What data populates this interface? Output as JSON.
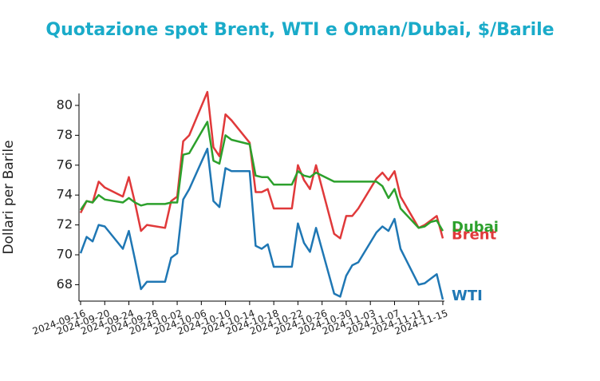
{
  "chart_data": {
    "type": "line",
    "title": "Quotazione spot Brent, WTI e Oman/Dubai, $/Barile",
    "ylabel": "Dollari per Barile",
    "x": [
      "2024-09-16",
      "2024-09-17",
      "2024-09-18",
      "2024-09-19",
      "2024-09-20",
      "2024-09-23",
      "2024-09-24",
      "2024-09-25",
      "2024-09-26",
      "2024-09-27",
      "2024-09-30",
      "2024-10-01",
      "2024-10-02",
      "2024-10-03",
      "2024-10-04",
      "2024-10-07",
      "2024-10-08",
      "2024-10-09",
      "2024-10-10",
      "2024-10-11",
      "2024-10-14",
      "2024-10-15",
      "2024-10-16",
      "2024-10-17",
      "2024-10-18",
      "2024-10-21",
      "2024-10-22",
      "2024-10-23",
      "2024-10-24",
      "2024-10-25",
      "2024-10-28",
      "2024-10-29",
      "2024-10-30",
      "2024-10-31",
      "2024-11-01",
      "2024-11-04",
      "2024-11-05",
      "2024-11-06",
      "2024-11-07",
      "2024-11-08",
      "2024-11-11",
      "2024-11-12",
      "2024-11-13",
      "2024-11-14",
      "2024-11-15"
    ],
    "series": [
      {
        "name": "Brent",
        "color": "#e0393a",
        "values": [
          72.8,
          73.6,
          73.5,
          74.9,
          74.5,
          73.9,
          75.2,
          73.5,
          71.6,
          72.0,
          71.8,
          73.6,
          73.9,
          77.6,
          78.0,
          80.9,
          77.2,
          76.6,
          79.4,
          79.0,
          77.5,
          74.2,
          74.2,
          74.4,
          73.1,
          73.1,
          76.0,
          75.0,
          74.4,
          76.0,
          71.4,
          71.1,
          72.6,
          72.6,
          73.1,
          75.1,
          75.5,
          75.0,
          75.6,
          73.9,
          71.8,
          72.0,
          72.3,
          72.6,
          71.1
        ]
      },
      {
        "name": "WTI",
        "color": "#1f77b4",
        "values": [
          70.1,
          71.2,
          70.9,
          72.0,
          71.9,
          70.4,
          71.6,
          69.7,
          67.7,
          68.2,
          68.2,
          69.8,
          70.1,
          73.7,
          74.4,
          77.1,
          73.6,
          73.2,
          75.8,
          75.6,
          75.6,
          70.6,
          70.4,
          70.7,
          69.2,
          69.2,
          72.1,
          70.8,
          70.2,
          71.8,
          67.4,
          67.2,
          68.6,
          69.3,
          69.5,
          71.5,
          71.9,
          71.6,
          72.4,
          70.4,
          68.0,
          68.1,
          68.4,
          68.7,
          67.0
        ]
      },
      {
        "name": "Dubai",
        "color": "#2ca02c",
        "values": [
          73.0,
          73.6,
          73.5,
          74.0,
          73.7,
          73.5,
          73.8,
          73.5,
          73.3,
          73.4,
          73.4,
          73.5,
          73.5,
          76.7,
          76.8,
          78.9,
          76.3,
          76.1,
          78.0,
          77.7,
          77.4,
          75.3,
          75.2,
          75.2,
          74.7,
          74.7,
          75.6,
          75.3,
          75.2,
          75.5,
          74.9,
          74.9,
          74.9,
          74.9,
          74.9,
          74.9,
          74.6,
          73.8,
          74.4,
          73.1,
          71.8,
          71.9,
          72.2,
          72.3,
          71.6
        ]
      }
    ],
    "xlim": [
      "2024-09-16",
      "2024-11-15"
    ],
    "xticks": [
      "2024-09-16",
      "2024-09-20",
      "2024-09-24",
      "2024-09-28",
      "2024-10-02",
      "2024-10-06",
      "2024-10-10",
      "2024-10-14",
      "2024-10-18",
      "2024-10-22",
      "2024-10-26",
      "2024-10-30",
      "2024-11-03",
      "2024-11-07",
      "2024-11-11",
      "2024-11-15"
    ],
    "ylim": [
      66.9,
      80.8
    ],
    "yticks": [
      68,
      70,
      72,
      74,
      76,
      78,
      80
    ]
  }
}
